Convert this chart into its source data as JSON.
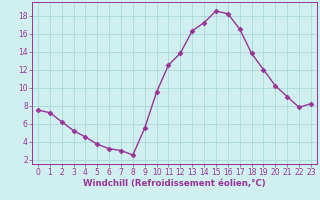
{
  "x": [
    0,
    1,
    2,
    3,
    4,
    5,
    6,
    7,
    8,
    9,
    10,
    11,
    12,
    13,
    14,
    15,
    16,
    17,
    18,
    19,
    20,
    21,
    22,
    23
  ],
  "y": [
    7.5,
    7.2,
    6.2,
    5.2,
    4.5,
    3.7,
    3.2,
    3.0,
    2.5,
    5.5,
    9.5,
    12.5,
    13.8,
    16.3,
    17.2,
    18.5,
    18.2,
    16.5,
    13.8,
    12.0,
    10.2,
    9.0,
    7.8,
    8.2
  ],
  "line_color": "#993399",
  "marker": "D",
  "marker_size": 2.5,
  "linewidth": 1.0,
  "xlabel": "Windchill (Refroidissement éolien,°C)",
  "ylabel": "",
  "xlim": [
    -0.5,
    23.5
  ],
  "ylim": [
    1.5,
    19.5
  ],
  "yticks": [
    2,
    4,
    6,
    8,
    10,
    12,
    14,
    16,
    18
  ],
  "xticks": [
    0,
    1,
    2,
    3,
    4,
    5,
    6,
    7,
    8,
    9,
    10,
    11,
    12,
    13,
    14,
    15,
    16,
    17,
    18,
    19,
    20,
    21,
    22,
    23
  ],
  "bg_color": "#cff0ee",
  "grid_color": "#a8d8d8",
  "font_color": "#993399",
  "tick_fontsize": 5.5,
  "xlabel_fontsize": 6.2
}
